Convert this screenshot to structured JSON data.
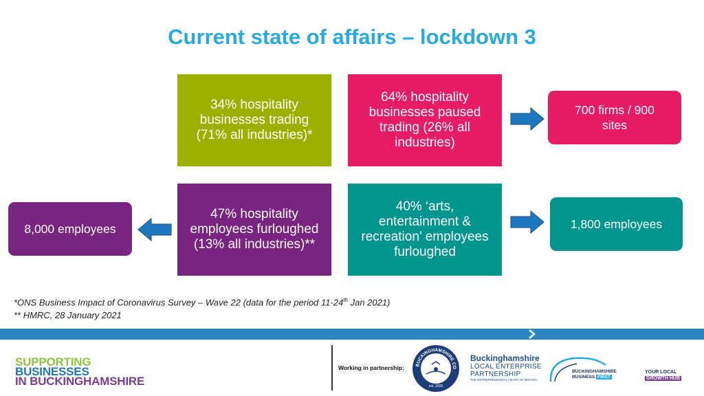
{
  "title": "Current state of affairs – lockdown 3",
  "boxes": {
    "trading": {
      "lines": [
        "34% hospitality",
        "businesses trading",
        "(71% all industries)*"
      ],
      "color": "#9bb000"
    },
    "paused": {
      "lines": [
        "64% hospitality",
        "businesses paused",
        "trading (26% all",
        "industries)"
      ],
      "color": "#e61d64"
    },
    "firms": {
      "lines": [
        "700 firms / 900",
        "sites"
      ],
      "color": "#e61d64"
    },
    "furloughed": {
      "lines": [
        "47% hospitality",
        "employees furloughed",
        "(13% all industries)**"
      ],
      "color": "#782480"
    },
    "employees8000": {
      "lines": [
        "8,000 employees"
      ],
      "color": "#782480"
    },
    "arts": {
      "lines": [
        "40% ‘arts,",
        "entertainment &",
        "recreation’ employees",
        "furloughed"
      ],
      "color": "#00958f"
    },
    "employees1800": {
      "lines": [
        "1,800 employees"
      ],
      "color": "#00958f"
    }
  },
  "footnotes": {
    "ons_pre": "*ONS Business Impact of Coronavirus Survey – Wave 22 (data for the period 11-24",
    "ons_sup": "th",
    "ons_post": " Jan 2021)",
    "hmrc": "** HMRC, 28 January 2021"
  },
  "logos": {
    "support": [
      "SUPPORTING",
      "BUSINESSES",
      "IN BUCKINGHAMSHIRE"
    ],
    "partnership": "Working in partnership:",
    "council_ring": "BUCKINGHAMSHIRE COUNCIL",
    "council_est": "est. 2020",
    "lep_name": "Buckinghamshire",
    "lep_line1": "LOCAL ENTERPRISE",
    "lep_line2": "PARTNERSHIP",
    "lep_tagline": "THE ENTREPRENEURIAL HEART OF BRITAIN",
    "bbf_line1": "BUCKINGHAMSHIRE",
    "bbf_line2": "BUSINESS",
    "bbf_first": "FIRST",
    "growth_line1": "YOUR LOCAL",
    "growth_line2": "GROWTH HUB"
  },
  "colors": {
    "title": "#27a9e1",
    "arrow": "#1f78bf",
    "arrow_outline": "#2a5c8f",
    "band": "#2e86c1"
  }
}
